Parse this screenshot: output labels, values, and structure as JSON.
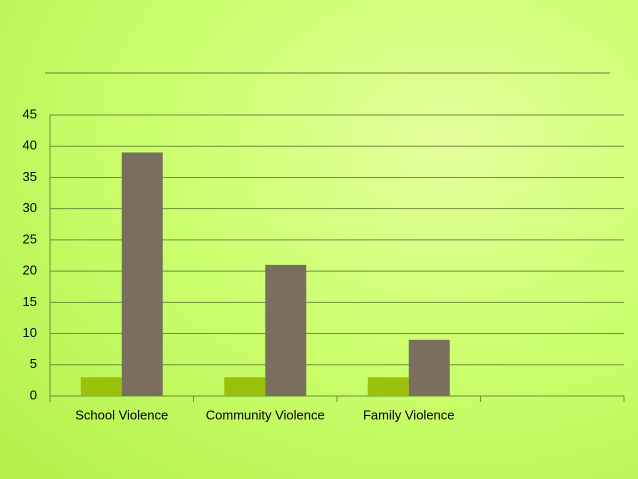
{
  "chart_data": {
    "type": "bar",
    "categories": [
      "School Violence",
      "Community Violence",
      "Family Violence",
      null
    ],
    "series": [
      {
        "color": "#99c10a",
        "values": [
          3,
          3,
          3,
          null
        ]
      },
      {
        "color": "#7a6e60",
        "values": [
          39,
          21,
          9,
          null
        ]
      }
    ],
    "ylim": [
      0,
      45
    ],
    "yticks": [
      0,
      5,
      10,
      15,
      20,
      25,
      30,
      35,
      40,
      45
    ],
    "grid": true
  }
}
